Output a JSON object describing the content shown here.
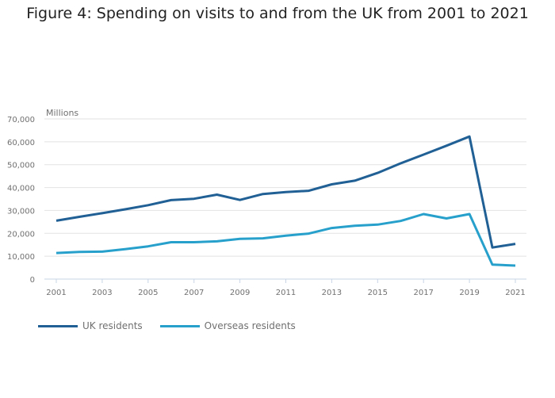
{
  "chart_data": {
    "type": "line",
    "title": "Figure 4: Spending on visits to and from the UK from 2001 to 2021",
    "ylabel": "Millions",
    "xlabel": "",
    "ylim": [
      0,
      70000
    ],
    "yticks": [
      "0",
      "10,000",
      "20,000",
      "30,000",
      "40,000",
      "50,000",
      "60,000",
      "70,000"
    ],
    "xticks": [
      "2001",
      "2003",
      "2005",
      "2007",
      "2009",
      "2011",
      "2013",
      "2015",
      "2017",
      "2019",
      "2021"
    ],
    "grid": true,
    "legend_placement": "bottom-left",
    "x": [
      2001,
      2002,
      2003,
      2004,
      2005,
      2006,
      2007,
      2008,
      2009,
      2010,
      2011,
      2012,
      2013,
      2014,
      2015,
      2016,
      2017,
      2018,
      2019,
      2020,
      2021
    ],
    "series": [
      {
        "name": "UK residents",
        "color": "#206095",
        "values": [
          25500,
          27200,
          28800,
          30500,
          32300,
          34500,
          35100,
          36900,
          34600,
          37200,
          38000,
          38600,
          41400,
          43000,
          46400,
          50600,
          54400,
          58300,
          62300,
          13800,
          15400
        ]
      },
      {
        "name": "Overseas residents",
        "color": "#27a0cc",
        "values": [
          11400,
          11900,
          12000,
          13100,
          14300,
          16100,
          16100,
          16500,
          17600,
          17800,
          19000,
          19900,
          22300,
          23300,
          23800,
          25400,
          28400,
          26500,
          28400,
          6300,
          5900
        ]
      }
    ]
  }
}
